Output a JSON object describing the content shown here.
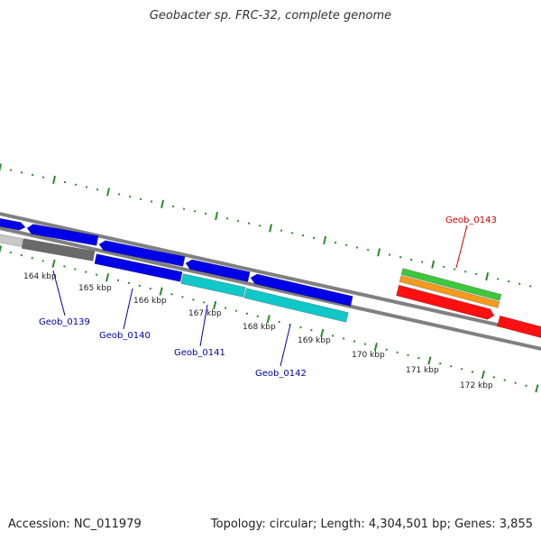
{
  "title": "Geobacter sp. FRC-32, complete genome",
  "footer": {
    "accession": "Accession: NC_011979",
    "stats": "Topology: circular; Length: 4,304,501 bp; Genes: 3,855"
  },
  "colors": {
    "background": "#ffffff",
    "backbone": "#808080",
    "tick": "#2a8a2a",
    "label_blue": "#0000aa",
    "label_red": "#cc0000",
    "gene_blue": "#0000e6",
    "gene_cyan": "#10c8c8",
    "gene_gray_light": "#c8c8c8",
    "gene_gray_dark": "#6a6a6a",
    "gene_green": "#3cc83c",
    "gene_orange": "#f59a1a",
    "gene_red": "#ff1010"
  },
  "scale": {
    "labels": [
      "164 kbp",
      "165 kbp",
      "166 kbp",
      "167 kbp",
      "168 kbp",
      "169 kbp",
      "170 kbp",
      "171 kbp",
      "172 kbp"
    ]
  },
  "features": {
    "labels": [
      {
        "name": "Geob_0139",
        "color": "blue"
      },
      {
        "name": "Geob_0140",
        "color": "blue"
      },
      {
        "name": "Geob_0141",
        "color": "blue"
      },
      {
        "name": "Geob_0142",
        "color": "blue"
      },
      {
        "name": "Geob_0143",
        "color": "red"
      }
    ]
  }
}
